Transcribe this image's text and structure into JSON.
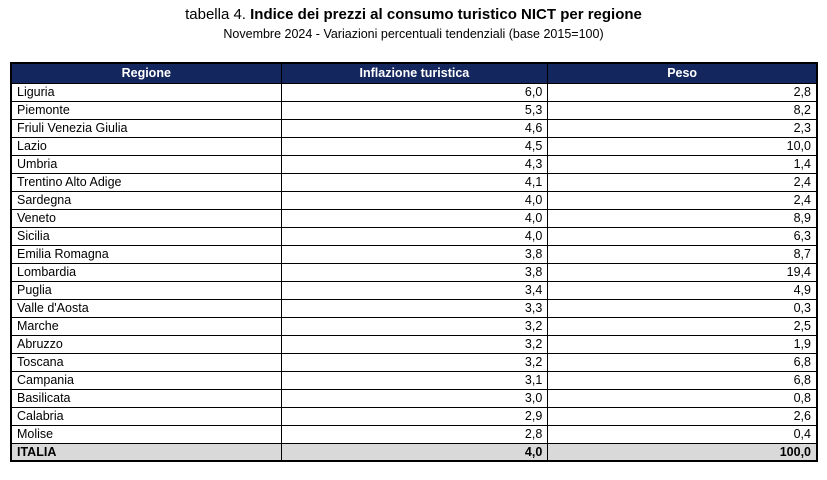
{
  "title": {
    "prefix": "tabella 4. ",
    "main": "Indice dei prezzi al consumo turistico NICT per regione"
  },
  "subtitle": "Novembre 2024 - Variazioni percentuali tendenziali (base 2015=100)",
  "colors": {
    "header_bg": "#13265E",
    "header_text": "#FFFFFF",
    "total_row_bg": "#D9D9D9",
    "border": "#000000"
  },
  "chart_data": {
    "type": "table",
    "columns": [
      "Regione",
      "Inflazione turistica",
      "Peso"
    ],
    "rows": [
      [
        "Liguria",
        "6,0",
        "2,8"
      ],
      [
        "Piemonte",
        "5,3",
        "8,2"
      ],
      [
        "Friuli Venezia Giulia",
        "4,6",
        "2,3"
      ],
      [
        "Lazio",
        "4,5",
        "10,0"
      ],
      [
        "Umbria",
        "4,3",
        "1,4"
      ],
      [
        "Trentino Alto Adige",
        "4,1",
        "2,4"
      ],
      [
        "Sardegna",
        "4,0",
        "2,4"
      ],
      [
        "Veneto",
        "4,0",
        "8,9"
      ],
      [
        "Sicilia",
        "4,0",
        "6,3"
      ],
      [
        "Emilia Romagna",
        "3,8",
        "8,7"
      ],
      [
        "Lombardia",
        "3,8",
        "19,4"
      ],
      [
        "Puglia",
        "3,4",
        "4,9"
      ],
      [
        "Valle d'Aosta",
        "3,3",
        "0,3"
      ],
      [
        "Marche",
        "3,2",
        "2,5"
      ],
      [
        "Abruzzo",
        "3,2",
        "1,9"
      ],
      [
        "Toscana",
        "3,2",
        "6,8"
      ],
      [
        "Campania",
        "3,1",
        "6,8"
      ],
      [
        "Basilicata",
        "3,0",
        "0,8"
      ],
      [
        "Calabria",
        "2,9",
        "2,6"
      ],
      [
        "Molise",
        "2,8",
        "0,4"
      ]
    ],
    "total_row": [
      "ITALIA",
      "4,0",
      "100,0"
    ]
  }
}
